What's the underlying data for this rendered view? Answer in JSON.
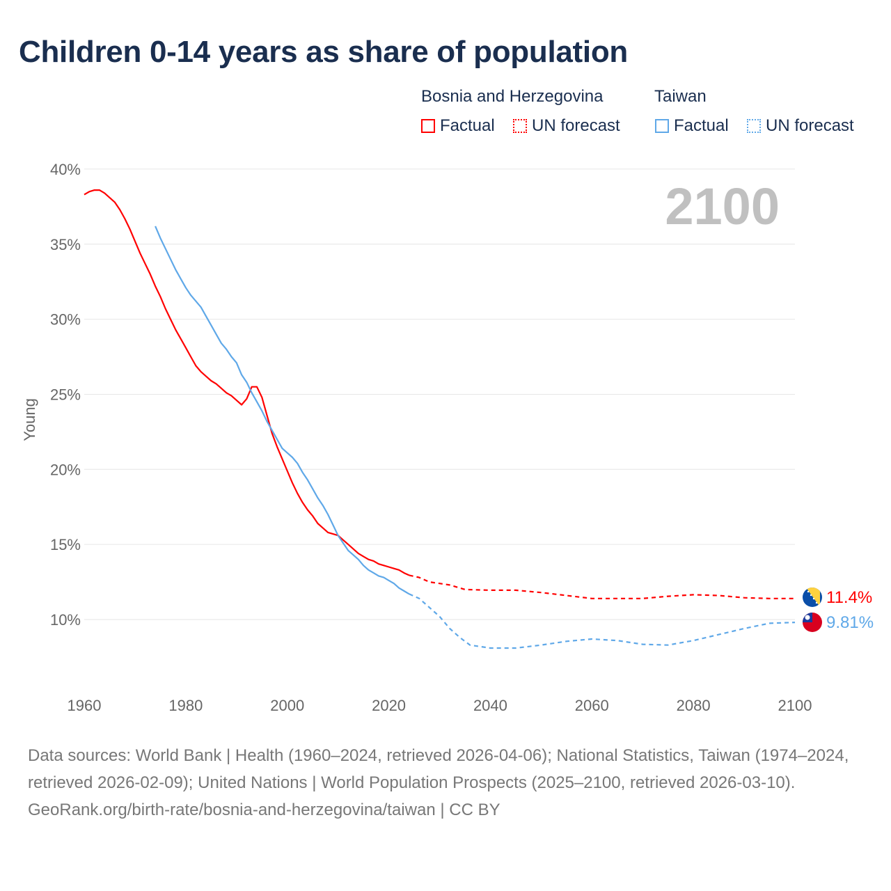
{
  "title": "Children 0-14 years as share of population",
  "legend": {
    "groups": [
      {
        "name": "Bosnia and Herzegovina",
        "factual": "Factual",
        "forecast": "UN forecast",
        "color": "#ff0000"
      },
      {
        "name": "Taiwan",
        "factual": "Factual",
        "forecast": "UN forecast",
        "color": "#5fa8e8"
      }
    ]
  },
  "year_label": "2100",
  "end_labels": {
    "bosnia": "11.4%",
    "taiwan": "9.81%"
  },
  "sources": "Data sources: World Bank | Health (1960–2024, retrieved 2026-04-06); National Statistics, Taiwan (1974–2024, retrieved 2026-02-09); United Nations | World Population Prospects (2025–2100, retrieved 2026-03-10).",
  "attribution": "GeoRank.org/birth-rate/bosnia-and-herzegovina/taiwan | CC BY",
  "chart_data": {
    "type": "line",
    "title": "Children 0-14 years as share of population",
    "xlabel": "",
    "ylabel": "Young",
    "xlim": [
      1960,
      2100
    ],
    "ylim": [
      6,
      40
    ],
    "x_ticks": [
      "1960",
      "1980",
      "2000",
      "2020",
      "2040",
      "2060",
      "2080",
      "2100"
    ],
    "y_ticks": [
      "10%",
      "15%",
      "20%",
      "25%",
      "30%",
      "35%",
      "40%"
    ],
    "grid": true,
    "series": [
      {
        "name": "Bosnia and Herzegovina",
        "kind": "Factual",
        "color": "#ff0000",
        "x": [
          1960,
          1961,
          1962,
          1963,
          1964,
          1965,
          1966,
          1967,
          1968,
          1969,
          1970,
          1971,
          1972,
          1973,
          1974,
          1975,
          1976,
          1977,
          1978,
          1979,
          1980,
          1981,
          1982,
          1983,
          1984,
          1985,
          1986,
          1987,
          1988,
          1989,
          1990,
          1991,
          1992,
          1993,
          1994,
          1995,
          1996,
          1997,
          1998,
          1999,
          2000,
          2001,
          2002,
          2003,
          2004,
          2005,
          2006,
          2007,
          2008,
          2009,
          2010,
          2011,
          2012,
          2013,
          2014,
          2015,
          2016,
          2017,
          2018,
          2019,
          2020,
          2021,
          2022,
          2023,
          2024
        ],
        "y": [
          38.3,
          38.5,
          38.6,
          38.6,
          38.4,
          38.1,
          37.8,
          37.3,
          36.7,
          36.0,
          35.2,
          34.4,
          33.7,
          33.0,
          32.2,
          31.5,
          30.7,
          30.0,
          29.3,
          28.7,
          28.1,
          27.5,
          26.9,
          26.5,
          26.2,
          25.9,
          25.7,
          25.4,
          25.1,
          24.9,
          24.6,
          24.3,
          24.7,
          25.5,
          25.5,
          24.8,
          23.6,
          22.4,
          21.5,
          20.7,
          19.9,
          19.1,
          18.4,
          17.8,
          17.3,
          16.9,
          16.4,
          16.1,
          15.8,
          15.7,
          15.6,
          15.3,
          15.0,
          14.7,
          14.4,
          14.2,
          14.0,
          13.9,
          13.7,
          13.6,
          13.5,
          13.4,
          13.3,
          13.1,
          12.95
        ]
      },
      {
        "name": "Bosnia and Herzegovina",
        "kind": "UN forecast",
        "color": "#ff0000",
        "x": [
          2024,
          2026,
          2028,
          2030,
          2032,
          2035,
          2040,
          2045,
          2050,
          2055,
          2060,
          2065,
          2070,
          2075,
          2080,
          2085,
          2090,
          2095,
          2100
        ],
        "y": [
          12.95,
          12.8,
          12.5,
          12.4,
          12.3,
          12.0,
          11.95,
          11.95,
          11.8,
          11.6,
          11.4,
          11.4,
          11.4,
          11.55,
          11.65,
          11.6,
          11.45,
          11.4,
          11.4
        ]
      },
      {
        "name": "Taiwan",
        "kind": "Factual",
        "color": "#5fa8e8",
        "x": [
          1974,
          1975,
          1976,
          1977,
          1978,
          1979,
          1980,
          1981,
          1982,
          1983,
          1984,
          1985,
          1986,
          1987,
          1988,
          1989,
          1990,
          1991,
          1992,
          1993,
          1994,
          1995,
          1996,
          1997,
          1998,
          1999,
          2000,
          2001,
          2002,
          2003,
          2004,
          2005,
          2006,
          2007,
          2008,
          2009,
          2010,
          2011,
          2012,
          2013,
          2014,
          2015,
          2016,
          2017,
          2018,
          2019,
          2020,
          2021,
          2022,
          2023,
          2024
        ],
        "y": [
          36.2,
          35.4,
          34.7,
          34.0,
          33.3,
          32.7,
          32.1,
          31.6,
          31.2,
          30.8,
          30.2,
          29.6,
          29.0,
          28.4,
          28.0,
          27.5,
          27.1,
          26.3,
          25.8,
          25.1,
          24.5,
          23.9,
          23.2,
          22.6,
          22.0,
          21.4,
          21.1,
          20.8,
          20.4,
          19.8,
          19.3,
          18.7,
          18.1,
          17.6,
          17.0,
          16.3,
          15.6,
          15.1,
          14.6,
          14.3,
          14.0,
          13.6,
          13.3,
          13.1,
          12.9,
          12.8,
          12.6,
          12.4,
          12.1,
          11.9,
          11.7
        ]
      },
      {
        "name": "Taiwan",
        "kind": "UN forecast",
        "color": "#5fa8e8",
        "x": [
          2024,
          2026,
          2028,
          2030,
          2032,
          2034,
          2036,
          2040,
          2045,
          2050,
          2055,
          2060,
          2065,
          2070,
          2075,
          2080,
          2085,
          2090,
          2095,
          2100
        ],
        "y": [
          11.7,
          11.4,
          10.8,
          10.2,
          9.4,
          8.8,
          8.3,
          8.1,
          8.1,
          8.3,
          8.55,
          8.7,
          8.6,
          8.35,
          8.3,
          8.6,
          9.0,
          9.4,
          9.75,
          9.81
        ]
      }
    ]
  }
}
